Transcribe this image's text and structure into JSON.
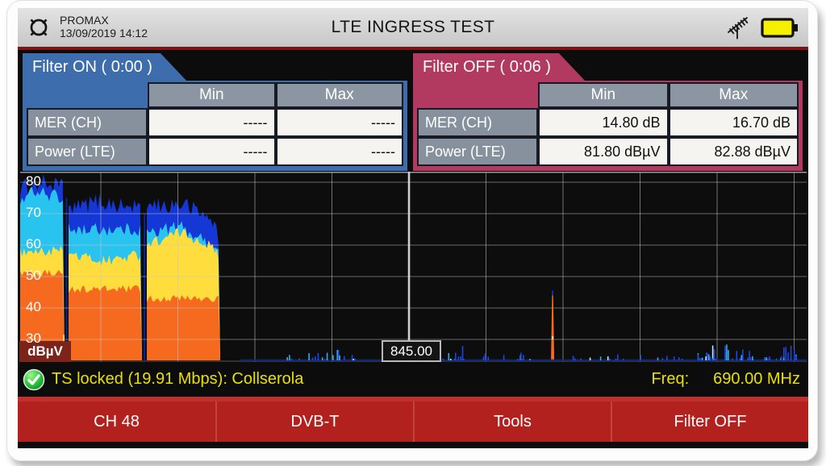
{
  "header": {
    "brand": "PROMAX",
    "datetime": "13/09/2019 14:12",
    "title": "LTE INGRESS TEST",
    "battery_color": "#f5f000"
  },
  "panels": {
    "filter_on": {
      "tab": "Filter ON ( 0:00 )",
      "accent": "#3d6dad",
      "columns": [
        "Min",
        "Max"
      ],
      "rows": [
        {
          "label": "MER (CH)",
          "min": "-----",
          "max": "-----"
        },
        {
          "label": "Power (LTE)",
          "min": "-----",
          "max": "-----"
        }
      ]
    },
    "filter_off": {
      "tab": "Filter OFF ( 0:06 )",
      "accent": "#b23a60",
      "columns": [
        "Min",
        "Max"
      ],
      "rows": [
        {
          "label": "MER (CH)",
          "min": "14.80 dB",
          "max": "16.70 dB"
        },
        {
          "label": "Power (LTE)",
          "min": "81.80 dBµV",
          "max": "82.88 dBµV"
        }
      ]
    }
  },
  "spectrum": {
    "unit": "dBµV",
    "marker_label": "845.00"
  },
  "status": {
    "text": "TS locked (19.91 Mbps): Collserola",
    "freq_label": "Freq:",
    "freq_value": "690.00 MHz",
    "color": "#e9e000"
  },
  "menu": {
    "bg": "#b2211e",
    "items": [
      "CH 48",
      "DVB-T",
      "Tools",
      "Filter OFF"
    ]
  },
  "chart_data": {
    "type": "area",
    "title": "LTE ingress spectrum (persistence display)",
    "ylabel": "dBµV",
    "ylim": [
      23,
      83
    ],
    "yticks": [
      80,
      70,
      60,
      50,
      40,
      30
    ],
    "grid": true,
    "marker": {
      "x_frac": 0.4944,
      "label": "845.00"
    },
    "noise_floor_dB": 23.3,
    "layer_colors": {
      "orange": "#f56a1e",
      "yellow": "#ffdd3c",
      "cyan": "#29c3f0",
      "blue": "#1537d6"
    },
    "blocks": [
      {
        "x0": 0.0,
        "x1": 0.0564,
        "orange": 51,
        "yellow": 58,
        "cyan": [
          [
            0,
            74
          ],
          [
            0.3,
            77
          ],
          [
            1,
            75
          ]
        ],
        "blue": [
          [
            0,
            78
          ],
          [
            0.5,
            80
          ],
          [
            1,
            78
          ]
        ]
      },
      {
        "x0": 0.0615,
        "x1": 0.1549,
        "orange": 46,
        "yellow": [
          [
            0,
            57
          ],
          [
            0.5,
            55
          ],
          [
            1,
            57
          ]
        ],
        "cyan": 65,
        "blue": [
          [
            0,
            71
          ],
          [
            0.4,
            74
          ],
          [
            0.8,
            72
          ],
          [
            1,
            73
          ]
        ]
      },
      {
        "x0": 0.161,
        "x1": 0.2544,
        "orange": 43,
        "yellow": [
          [
            0,
            60
          ],
          [
            0.45,
            64
          ],
          [
            0.8,
            61
          ],
          [
            1,
            56
          ]
        ],
        "cyan": [
          [
            0,
            64
          ],
          [
            0.45,
            66
          ],
          [
            1,
            58
          ]
        ],
        "blue": [
          [
            0,
            72
          ],
          [
            0.5,
            73
          ],
          [
            0.9,
            68
          ],
          [
            1,
            60
          ]
        ]
      }
    ],
    "gap_lines": [
      {
        "x_frac": 0.059,
        "top_dB": 75
      },
      {
        "x_frac": 0.158,
        "top_dB": 70
      }
    ],
    "yellow_gap_line": {
      "x_frac": 0.0555,
      "top_dB": 31.5
    },
    "spike": {
      "x_frac": 0.677,
      "top_dB": 44
    },
    "noise_clusters": [
      {
        "x0": 0.315,
        "x1": 0.372,
        "max_dB": 25.5,
        "density": 0.25
      },
      {
        "x0": 0.372,
        "x1": 0.425,
        "max_dB": 27.5,
        "density": 0.6
      },
      {
        "x0": 0.53,
        "x1": 0.565,
        "max_dB": 27.5,
        "density": 0.6
      },
      {
        "x0": 0.585,
        "x1": 0.66,
        "max_dB": 25.5,
        "density": 0.3
      },
      {
        "x0": 0.7,
        "x1": 0.86,
        "max_dB": 24.8,
        "density": 0.25
      },
      {
        "x0": 0.86,
        "x1": 1.0,
        "max_dB": 28.0,
        "density": 0.75
      }
    ]
  }
}
